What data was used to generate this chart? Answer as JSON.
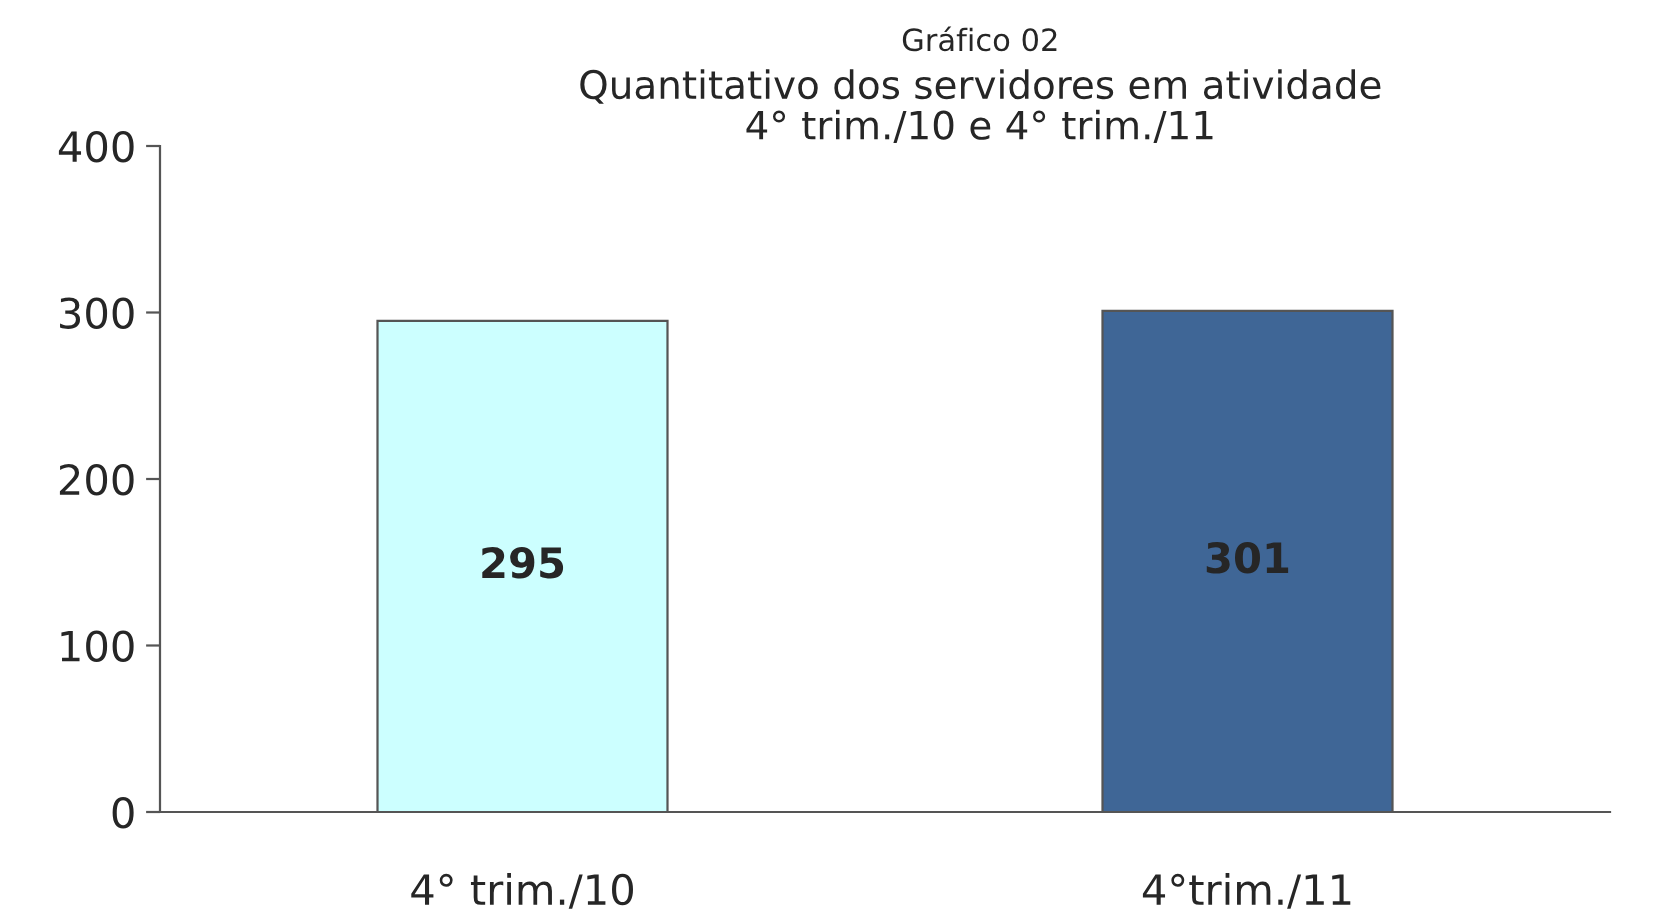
{
  "chart_data": {
    "type": "bar",
    "title": "Gráfico 02",
    "subtitle": "Quantitativo dos servidores em atividade\n4° trim./10 e 4° trim./11",
    "categories": [
      "4° trim./10",
      "4°trim./11"
    ],
    "values": [
      295,
      301
    ],
    "colors": [
      "#ccffff",
      "#3f6696"
    ],
    "ylim": [
      0,
      400
    ],
    "yticks": [
      0,
      100,
      200,
      300,
      400
    ],
    "grid": false,
    "data_labels": true
  }
}
